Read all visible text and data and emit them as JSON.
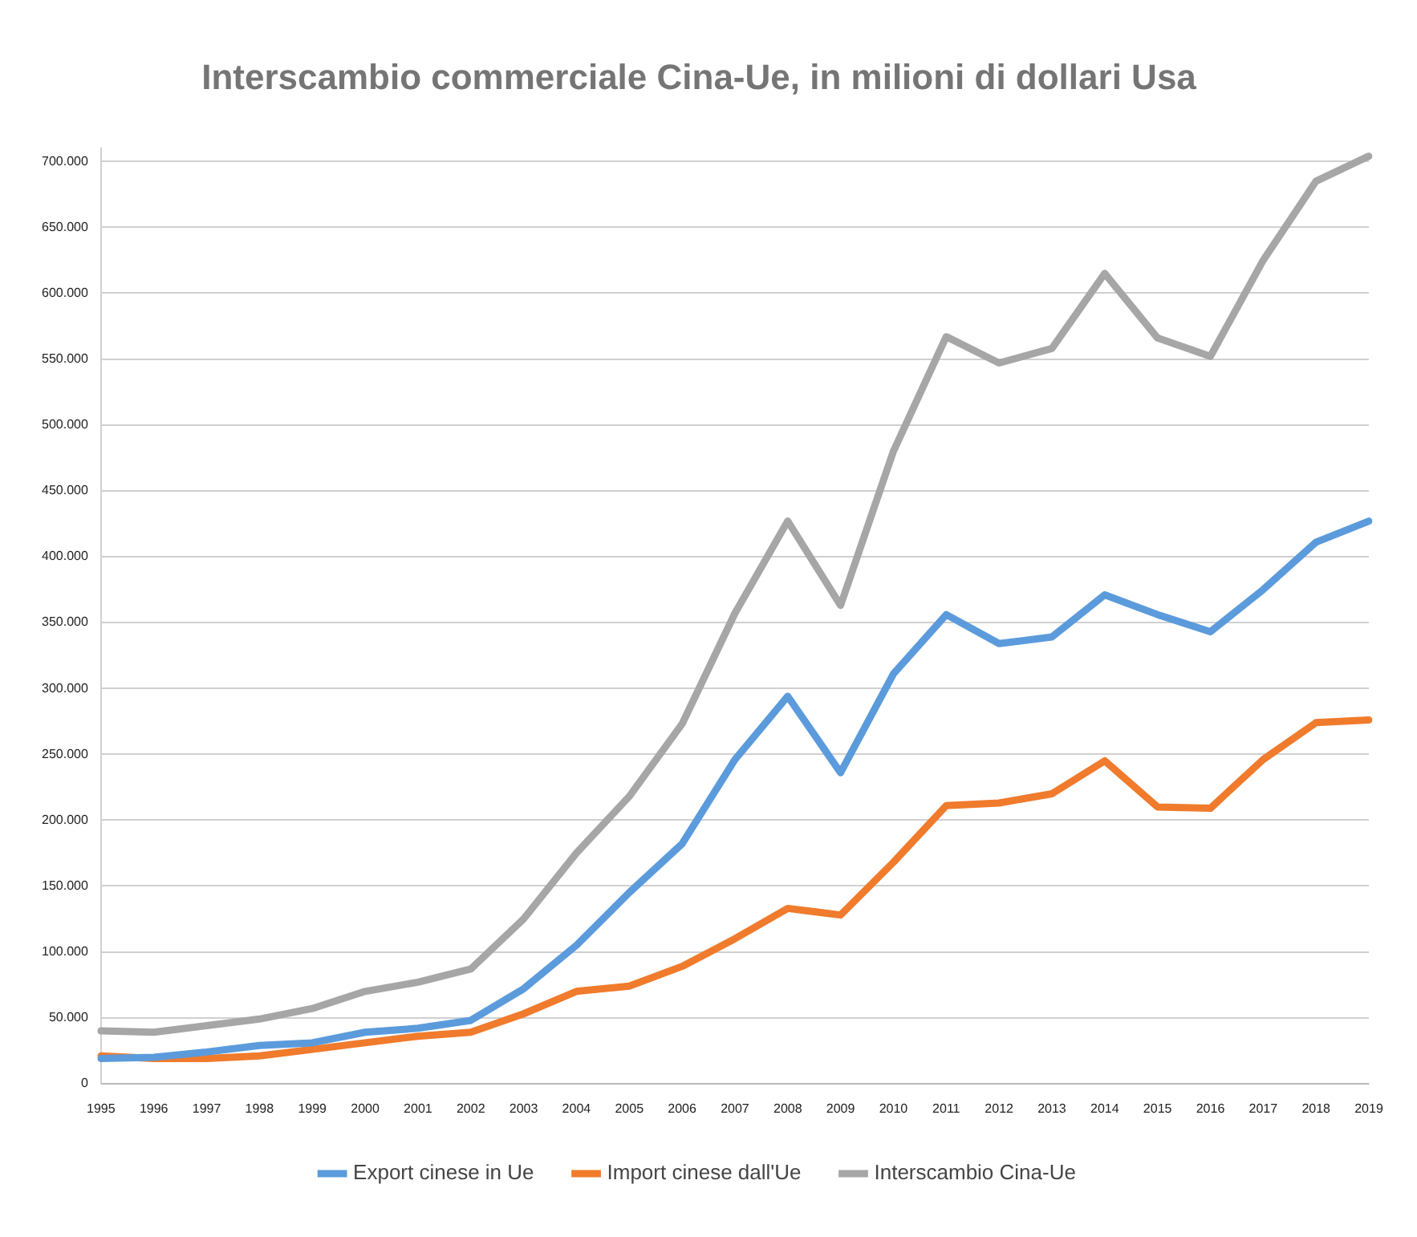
{
  "chart_data": {
    "type": "line",
    "title": "Interscambio commerciale Cina-Ue, in milioni di dollari Usa",
    "categories": [
      "1995",
      "1996",
      "1997",
      "1998",
      "1999",
      "2000",
      "2001",
      "2002",
      "2003",
      "2004",
      "2005",
      "2006",
      "2007",
      "2008",
      "2009",
      "2010",
      "2011",
      "2012",
      "2013",
      "2014",
      "2015",
      "2016",
      "2017",
      "2018",
      "2019"
    ],
    "series": [
      {
        "name": "Export cinese in Ue",
        "color": "#5b9bdc",
        "values": [
          19000,
          20000,
          24000,
          29000,
          31000,
          39000,
          42000,
          48000,
          72000,
          105000,
          145000,
          182000,
          246000,
          294000,
          236000,
          311000,
          356000,
          334000,
          339000,
          371000,
          356000,
          343000,
          375000,
          411000,
          427000
        ]
      },
      {
        "name": "Import cinese dall'Ue",
        "color": "#f07b2c",
        "values": [
          21000,
          19000,
          19000,
          21000,
          26000,
          31000,
          36000,
          39000,
          53000,
          70000,
          74000,
          89000,
          110000,
          133000,
          128000,
          168000,
          211000,
          213000,
          220000,
          245000,
          210000,
          209000,
          246000,
          274000,
          276000
        ]
      },
      {
        "name": "Interscambio Cina-Ue",
        "color": "#a6a6a6",
        "values": [
          40000,
          39000,
          44000,
          49000,
          57000,
          70000,
          77000,
          87000,
          125000,
          175000,
          218000,
          273000,
          357000,
          427000,
          363000,
          480000,
          567000,
          547000,
          558000,
          615000,
          566000,
          552000,
          625000,
          685000,
          704000
        ]
      }
    ],
    "ylim": [
      0,
      710000
    ],
    "yticks": [
      {
        "value": 0,
        "label": "0"
      },
      {
        "value": 50000,
        "label": "50.000"
      },
      {
        "value": 100000,
        "label": "100.000"
      },
      {
        "value": 150000,
        "label": "150.000"
      },
      {
        "value": 200000,
        "label": "200.000"
      },
      {
        "value": 250000,
        "label": "250.000"
      },
      {
        "value": 300000,
        "label": "300.000"
      },
      {
        "value": 350000,
        "label": "350.000"
      },
      {
        "value": 400000,
        "label": "400.000"
      },
      {
        "value": 450000,
        "label": "450.000"
      },
      {
        "value": 500000,
        "label": "500.000"
      },
      {
        "value": 550000,
        "label": "550.000"
      },
      {
        "value": 600000,
        "label": "600.000"
      },
      {
        "value": 650000,
        "label": "650.000"
      },
      {
        "value": 700000,
        "label": "700.000"
      }
    ],
    "grid": "y",
    "legend": "bottom",
    "marker": "none",
    "line_style": "solid"
  }
}
